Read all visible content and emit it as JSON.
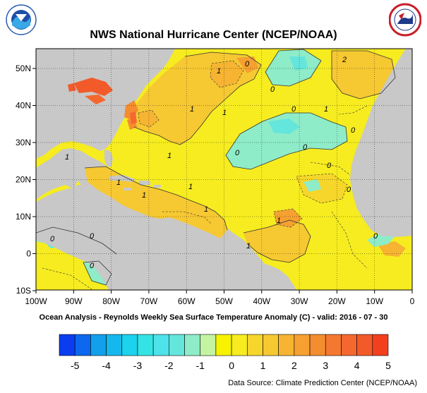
{
  "header": {
    "title": "NWS National Hurricane Center (NCEP/NOAA)",
    "left_logo": "NOAA",
    "right_logo": "NATIONAL WEATHER SERVICE"
  },
  "map": {
    "subtitle": "Ocean Analysis - Reynolds Weekly Sea Surface Temperature Anomaly (C) - valid: 2016 - 07 - 30",
    "lon_labels": [
      "100W",
      "90W",
      "80W",
      "70W",
      "60W",
      "50W",
      "40W",
      "30W",
      "20W",
      "10W",
      "0"
    ],
    "lat_labels": [
      "50N",
      "40N",
      "30N",
      "20N",
      "10N",
      "0",
      "10S"
    ],
    "contour_labels": [
      "1",
      "1",
      "1",
      "1",
      "1",
      "1",
      "1",
      "1",
      "1",
      "1",
      "1",
      "1",
      "0",
      "0",
      "0",
      "0",
      "0",
      "0",
      "0",
      "0",
      "0",
      "0",
      "2",
      "0",
      "0"
    ]
  },
  "colorbar": {
    "tick_labels": [
      "-5",
      "-4",
      "-3",
      "-2",
      "-1",
      "0",
      "1",
      "2",
      "3",
      "4",
      "5"
    ],
    "colors": [
      "#0a3cf0",
      "#0c68ee",
      "#12a0ec",
      "#14b8ec",
      "#1cd2ec",
      "#34e4e4",
      "#4ee2ea",
      "#64e6dc",
      "#8eecc8",
      "#c2f4a2",
      "#f6f200",
      "#f6ec20",
      "#f6d62a",
      "#f6c832",
      "#f6b432",
      "#f5a030",
      "#f48c30",
      "#f47830",
      "#f46830",
      "#f25a2a",
      "#f2401e"
    ]
  },
  "footer": {
    "source": "Data Source: Climate Prediction Center (NCEP/NOAA)"
  }
}
